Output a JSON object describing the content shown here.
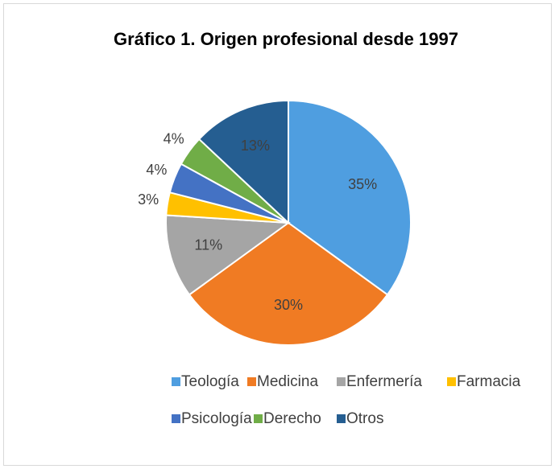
{
  "chart_data": {
    "type": "pie",
    "title": "Gráfico 1. Origen profesional desde 1997",
    "categories": [
      "Teología",
      "Medicina",
      "Enfermería",
      "Farmacia",
      "Psicología",
      "Derecho",
      "Otros"
    ],
    "values": [
      35,
      30,
      11,
      3,
      4,
      4,
      13
    ],
    "value_labels": [
      "35%",
      "30%",
      "11%",
      "3%",
      "4%",
      "4%",
      "13%"
    ],
    "colors": [
      "#4f9ee0",
      "#f07b23",
      "#a5a5a5",
      "#ffc000",
      "#4472c4",
      "#70ad47",
      "#255e91"
    ],
    "legend": "bottom"
  }
}
